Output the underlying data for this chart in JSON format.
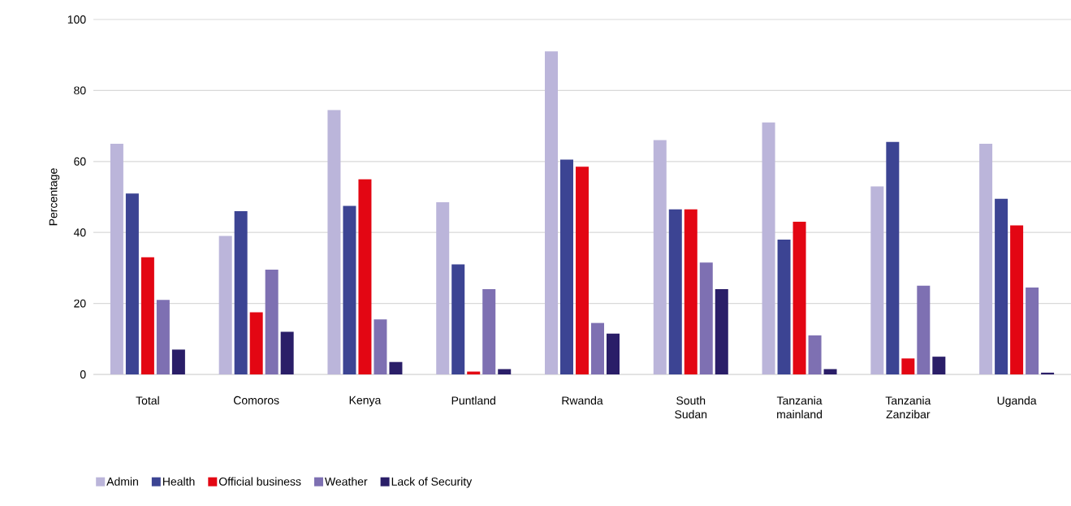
{
  "chart_data": {
    "type": "bar",
    "ylabel": "Percentage",
    "categories": [
      "Total",
      "Comoros",
      "Kenya",
      "Puntland",
      "Rwanda",
      "South Sudan",
      "Tanzania mainland",
      "Tanzania Zanzibar",
      "Uganda"
    ],
    "series": [
      {
        "name": "Admin",
        "color": "#bbb5da",
        "values": [
          65,
          39,
          74.5,
          48.5,
          91,
          66,
          71,
          53,
          65
        ]
      },
      {
        "name": "Health",
        "color": "#3c4493",
        "values": [
          51,
          46,
          47.5,
          31,
          60.5,
          46.5,
          38,
          65.5,
          49.5
        ]
      },
      {
        "name": "Official business",
        "color": "#e30613",
        "values": [
          33,
          17.5,
          55,
          0.8,
          58.5,
          46.5,
          43,
          4.5,
          42
        ]
      },
      {
        "name": "Weather",
        "color": "#7e70b2",
        "values": [
          21,
          29.5,
          15.5,
          24,
          14.5,
          31.5,
          11,
          25,
          24.5
        ]
      },
      {
        "name": "Lack of Security",
        "color": "#2a1e68",
        "values": [
          7,
          12,
          3.5,
          1.5,
          11.5,
          24,
          1.5,
          5,
          0.5
        ]
      }
    ],
    "ylim": [
      0,
      100
    ],
    "yticks": [
      0,
      20,
      40,
      60,
      80,
      100
    ],
    "grid": "y",
    "legend": "bottom left"
  }
}
